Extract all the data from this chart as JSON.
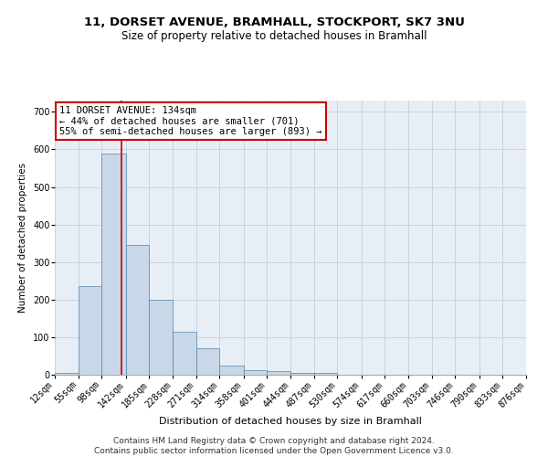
{
  "title_line1": "11, DORSET AVENUE, BRAMHALL, STOCKPORT, SK7 3NU",
  "title_line2": "Size of property relative to detached houses in Bramhall",
  "xlabel": "Distribution of detached houses by size in Bramhall",
  "ylabel": "Number of detached properties",
  "bar_color": "#c8d8e8",
  "bar_edge_color": "#5585a8",
  "grid_color": "#c8d4e0",
  "background_color": "#e8eef5",
  "bin_edges": [
    12,
    55,
    98,
    142,
    185,
    228,
    271,
    314,
    358,
    401,
    444,
    487,
    530,
    574,
    617,
    660,
    703,
    746,
    790,
    833,
    876
  ],
  "bar_heights": [
    5,
    235,
    590,
    345,
    200,
    115,
    70,
    25,
    12,
    10,
    5,
    5,
    0,
    0,
    0,
    0,
    0,
    0,
    0,
    0
  ],
  "property_size": 134,
  "red_line_color": "#cc0000",
  "annotation_line1": "11 DORSET AVENUE: 134sqm",
  "annotation_line2": "← 44% of detached houses are smaller (701)",
  "annotation_line3": "55% of semi-detached houses are larger (893) →",
  "annotation_box_color": "#ffffff",
  "annotation_box_edge_color": "#cc0000",
  "ylim": [
    0,
    730
  ],
  "yticks": [
    0,
    100,
    200,
    300,
    400,
    500,
    600,
    700
  ],
  "footer_text": "Contains HM Land Registry data © Crown copyright and database right 2024.\nContains public sector information licensed under the Open Government Licence v3.0.",
  "title_fontsize": 9.5,
  "subtitle_fontsize": 8.5,
  "axis_label_fontsize": 8,
  "tick_fontsize": 7,
  "annotation_fontsize": 7.5,
  "footer_fontsize": 6.5,
  "ylabel_fontsize": 7.5
}
